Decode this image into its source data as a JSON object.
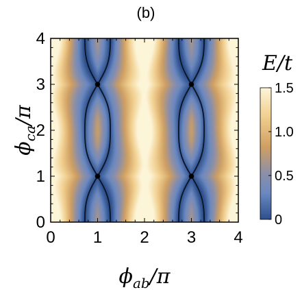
{
  "chart_data": {
    "type": "heatmap",
    "title": "(b)",
    "xlabel": {
      "symbol": "ϕ",
      "subscript": "ab",
      "suffix": "/π"
    },
    "ylabel": {
      "symbol": "ϕ",
      "subscript": "ca",
      "suffix": "/π"
    },
    "xlim": [
      0,
      4
    ],
    "ylim": [
      0,
      4
    ],
    "xticks": [
      "0",
      "1",
      "2",
      "3",
      "4"
    ],
    "yticks": [
      "0",
      "1",
      "2",
      "3",
      "4"
    ],
    "colorbar": {
      "label": "E/t",
      "range": [
        0,
        1.5
      ],
      "ticks": [
        "0",
        "0.5",
        "1.0",
        "1.5"
      ],
      "colors": [
        "#2c4f8c",
        "#6b89c1",
        "#8c8fa8",
        "#cf9f62",
        "#f1cf8f",
        "#fdf5d8"
      ]
    },
    "nodes": [
      {
        "x": 1,
        "y": 1
      },
      {
        "x": 1,
        "y": 3
      },
      {
        "x": 3,
        "y": 1
      },
      {
        "x": 3,
        "y": 3
      }
    ],
    "zero_energy_lines": "S-shaped curves through the Dirac points at (1,1),(1,3),(3,1),(3,3)"
  }
}
